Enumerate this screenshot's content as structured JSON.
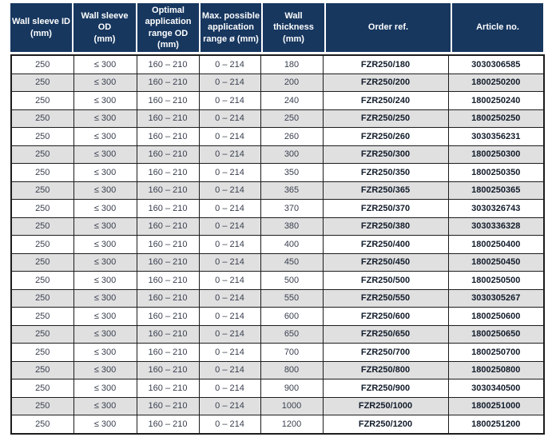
{
  "colors": {
    "header_bg": "#17375f",
    "header_text": "#ffffff",
    "row_alt": "#e0e0e0",
    "border": "#1c1c1c",
    "body_text": "#3a4150",
    "strong_text": "#121c2b",
    "page_bg": "#ffffff"
  },
  "table": {
    "columns": [
      {
        "key": "wall-sleeve-id",
        "label": "Wall sleeve ID\n(mm)"
      },
      {
        "key": "wall-sleeve-od",
        "label": "Wall sleeve OD\n(mm)"
      },
      {
        "key": "optimal-range",
        "label": "Optimal\napplication\nrange OD\n(mm)"
      },
      {
        "key": "max-range",
        "label": "Max. possible\napplication\nrange ø (mm)"
      },
      {
        "key": "wall-thickness",
        "label": "Wall thickness\n(mm)"
      },
      {
        "key": "order-ref",
        "label": "Order ref."
      },
      {
        "key": "article-no",
        "label": "Article no."
      }
    ],
    "rows": [
      [
        "250",
        "≤ 300",
        "160 – 210",
        "0 – 214",
        "180",
        "FZR250/180",
        "3030306585"
      ],
      [
        "250",
        "≤ 300",
        "160 – 210",
        "0 – 214",
        "200",
        "FZR250/200",
        "1800250200"
      ],
      [
        "250",
        "≤ 300",
        "160 – 210",
        "0 – 214",
        "240",
        "FZR250/240",
        "1800250240"
      ],
      [
        "250",
        "≤ 300",
        "160 – 210",
        "0 – 214",
        "250",
        "FZR250/250",
        "1800250250"
      ],
      [
        "250",
        "≤ 300",
        "160 – 210",
        "0 – 214",
        "260",
        "FZR250/260",
        "3030356231"
      ],
      [
        "250",
        "≤ 300",
        "160 – 210",
        "0 – 214",
        "300",
        "FZR250/300",
        "1800250300"
      ],
      [
        "250",
        "≤ 300",
        "160 – 210",
        "0 – 214",
        "350",
        "FZR250/350",
        "1800250350"
      ],
      [
        "250",
        "≤ 300",
        "160 – 210",
        "0 – 214",
        "365",
        "FZR250/365",
        "1800250365"
      ],
      [
        "250",
        "≤ 300",
        "160 – 210",
        "0 – 214",
        "370",
        "FZR250/370",
        "3030326743"
      ],
      [
        "250",
        "≤ 300",
        "160 – 210",
        "0 – 214",
        "380",
        "FZR250/380",
        "3030336328"
      ],
      [
        "250",
        "≤ 300",
        "160 – 210",
        "0 – 214",
        "400",
        "FZR250/400",
        "1800250400"
      ],
      [
        "250",
        "≤ 300",
        "160 – 210",
        "0 – 214",
        "450",
        "FZR250/450",
        "1800250450"
      ],
      [
        "250",
        "≤ 300",
        "160 – 210",
        "0 – 214",
        "500",
        "FZR250/500",
        "1800250500"
      ],
      [
        "250",
        "≤ 300",
        "160 – 210",
        "0 – 214",
        "550",
        "FZR250/550",
        "3030305267"
      ],
      [
        "250",
        "≤ 300",
        "160 – 210",
        "0 – 214",
        "600",
        "FZR250/600",
        "1800250600"
      ],
      [
        "250",
        "≤ 300",
        "160 – 210",
        "0 – 214",
        "650",
        "FZR250/650",
        "1800250650"
      ],
      [
        "250",
        "≤ 300",
        "160 – 210",
        "0 – 214",
        "700",
        "FZR250/700",
        "1800250700"
      ],
      [
        "250",
        "≤ 300",
        "160 – 210",
        "0 – 214",
        "800",
        "FZR250/800",
        "1800250800"
      ],
      [
        "250",
        "≤ 300",
        "160 – 210",
        "0 – 214",
        "900",
        "FZR250/900",
        "3030340500"
      ],
      [
        "250",
        "≤ 300",
        "160 – 210",
        "0 – 214",
        "1000",
        "FZR250/1000",
        "1800251000"
      ],
      [
        "250",
        "≤ 300",
        "160 – 210",
        "0 – 214",
        "1200",
        "FZR250/1200",
        "1800251200"
      ]
    ]
  },
  "chart_data": {
    "type": "table",
    "title": "",
    "columns": [
      "Wall sleeve ID (mm)",
      "Wall sleeve OD (mm)",
      "Optimal application range OD (mm)",
      "Max. possible application range ø (mm)",
      "Wall thickness (mm)",
      "Order ref.",
      "Article no."
    ],
    "wall_thickness_values": [
      180,
      200,
      240,
      250,
      260,
      300,
      350,
      365,
      370,
      380,
      400,
      450,
      500,
      550,
      600,
      650,
      700,
      800,
      900,
      1000,
      1200
    ]
  }
}
